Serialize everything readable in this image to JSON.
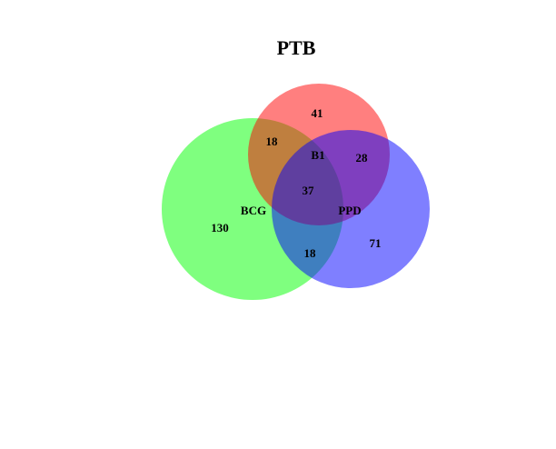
{
  "title": "PTB",
  "sets": [
    {
      "id": "B1",
      "label": "B1",
      "color": "#ff0000",
      "opacity": 0.5
    },
    {
      "id": "BCG",
      "label": "BCG",
      "color": "#00ff00",
      "opacity": 0.5
    },
    {
      "id": "PPD",
      "label": "PPD",
      "color": "#0000ff",
      "opacity": 0.5
    }
  ],
  "regions": {
    "b1_only": "41",
    "bcg_only": "130",
    "ppd_only": "71",
    "b1_bcg": "18",
    "b1_ppd": "28",
    "bcg_ppd": "18",
    "all_three": "37"
  }
}
